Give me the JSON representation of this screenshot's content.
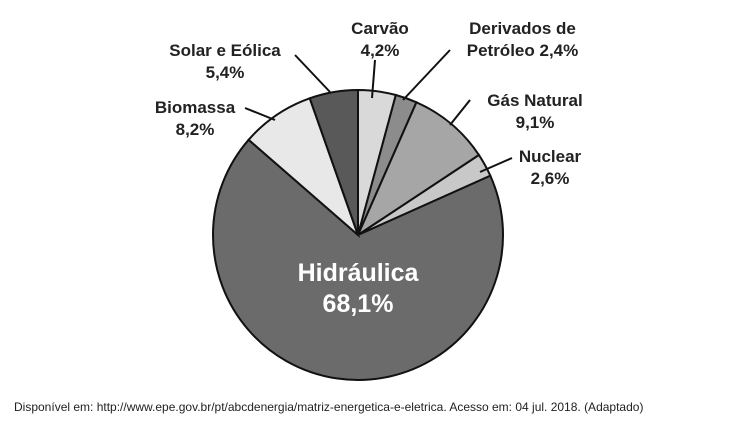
{
  "chart_data": {
    "type": "pie",
    "categories": [
      "Carvão",
      "Derivados de Petróleo",
      "Gás Natural",
      "Nuclear",
      "Hidráulica",
      "Biomassa",
      "Solar e Eólica"
    ],
    "values": [
      4.2,
      2.4,
      9.1,
      2.6,
      68.1,
      8.2,
      5.4
    ],
    "value_labels": [
      "4,2%",
      "2,4%",
      "9,1%",
      "2,6%",
      "68,1%",
      "8,2%",
      "5,4%"
    ],
    "colors": [
      "#d9d9d9",
      "#8c8c8c",
      "#a6a6a6",
      "#c8c8c8",
      "#6b6b6b",
      "#e8e8e8",
      "#595959"
    ],
    "source": "Disponível em: http://www.epe.gov.br/pt/abcdenergia/matriz-energetica-e-eletrica. Acesso em: 04 jul. 2018. (Adaptado)"
  }
}
